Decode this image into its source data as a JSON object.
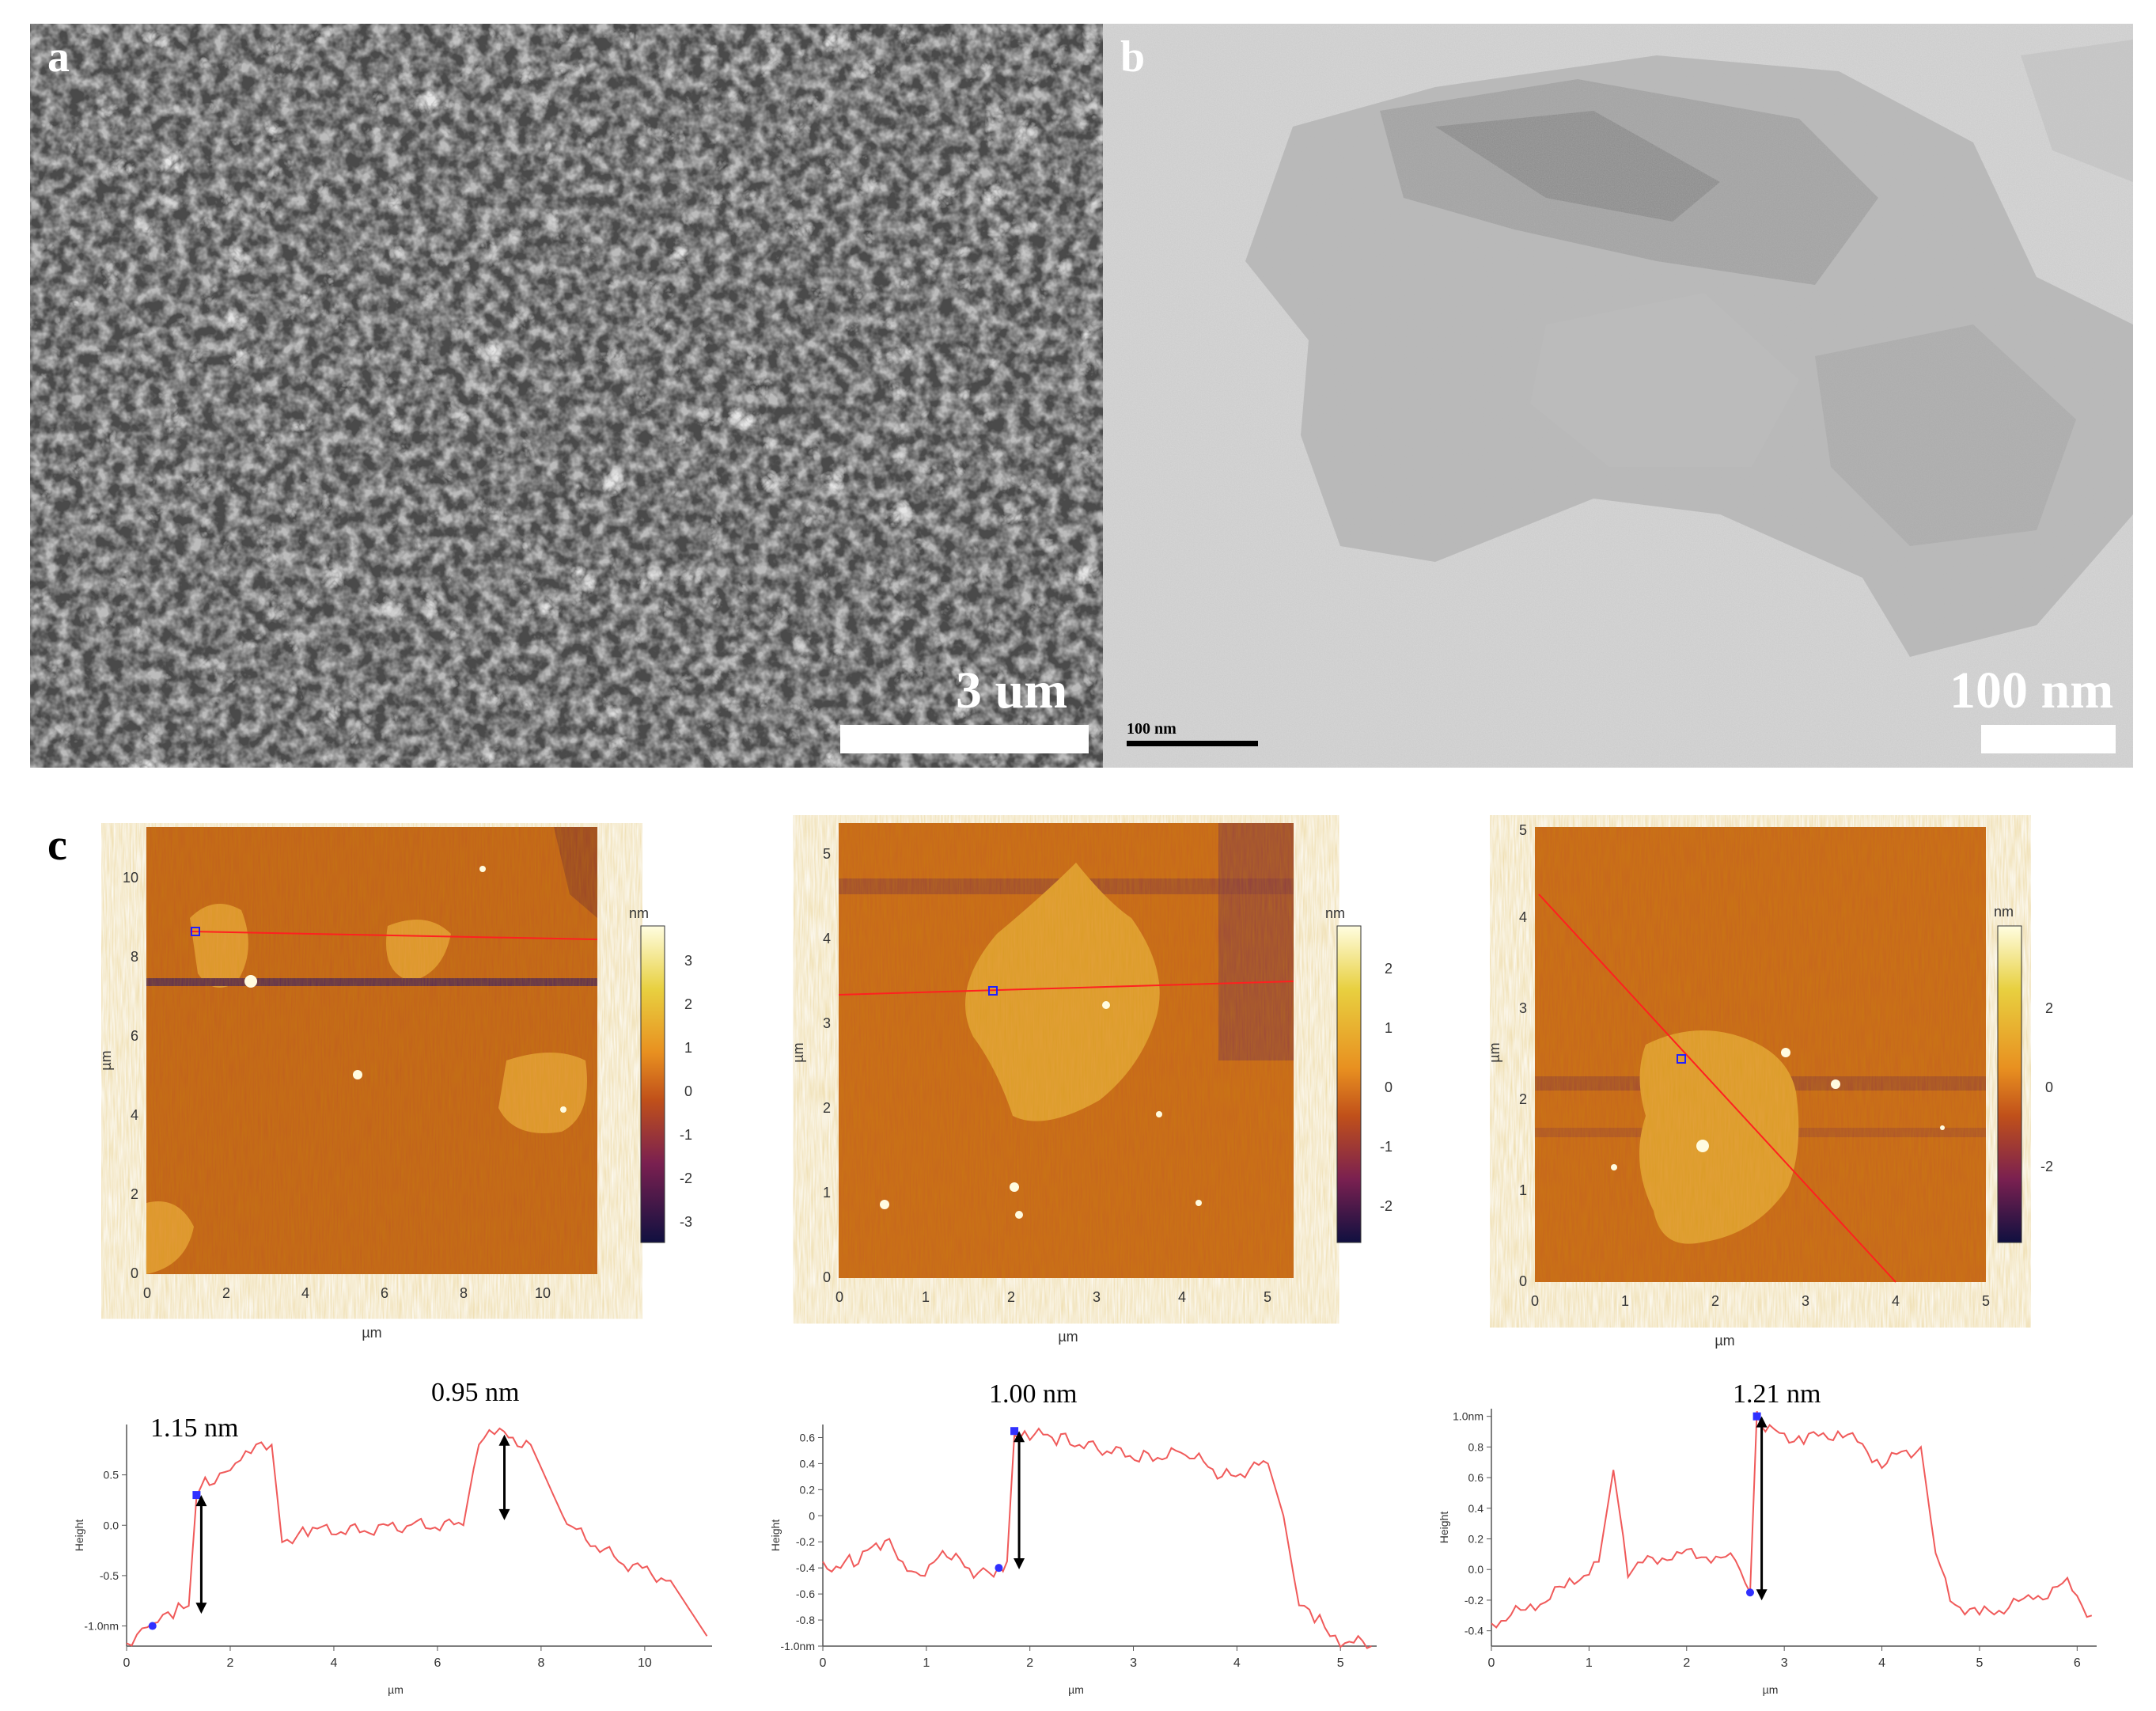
{
  "panels": {
    "a": {
      "letter": "a",
      "scale_label": "3 um"
    },
    "b": {
      "letter": "b",
      "scale_label": "100 nm",
      "micro_label": "100 nm"
    },
    "c": {
      "letter": "c"
    }
  },
  "afm": [
    {
      "xticks": [
        "0",
        "2",
        "4",
        "6",
        "8",
        "10"
      ],
      "yticks": [
        "0",
        "2",
        "4",
        "6",
        "8",
        "10"
      ],
      "axis_unit": "µm",
      "colorbar_unit": "nm",
      "colorbar_ticks": [
        "3",
        "2",
        "1",
        "0",
        "-1",
        "-2",
        "-3"
      ]
    },
    {
      "xticks": [
        "0",
        "1",
        "2",
        "3",
        "4",
        "5"
      ],
      "yticks": [
        "0",
        "1",
        "2",
        "3",
        "4",
        "5"
      ],
      "axis_unit": "µm",
      "colorbar_unit": "nm",
      "colorbar_ticks": [
        "2",
        "1",
        "0",
        "-1",
        "-2"
      ]
    },
    {
      "xticks": [
        "0",
        "1",
        "2",
        "3",
        "4",
        "5"
      ],
      "yticks": [
        "0",
        "1",
        "2",
        "3",
        "4",
        "5"
      ],
      "axis_unit": "µm",
      "colorbar_unit": "nm",
      "colorbar_ticks": [
        "2",
        "0",
        "-2"
      ]
    }
  ],
  "chart_data": [
    {
      "type": "line",
      "xlabel": "µm",
      "ylabel": "Height",
      "xticks": [
        "0",
        "2",
        "4",
        "6",
        "8",
        "10"
      ],
      "yticks": [
        "0.5",
        "0.0",
        "-0.5",
        "-1.0nm"
      ],
      "annotations": [
        "1.15 nm",
        "0.95 nm"
      ],
      "xlim": [
        0,
        11.3
      ],
      "ylim": [
        -1.2,
        1.0
      ],
      "x": [
        0,
        0.5,
        1.0,
        1.2,
        1.35,
        1.6,
        2.0,
        2.5,
        2.8,
        3.0,
        3.5,
        4.5,
        5.5,
        6.5,
        6.8,
        7.2,
        7.8,
        8.5,
        9.5,
        10.5,
        11.2
      ],
      "y": [
        -1.15,
        -1.0,
        -0.85,
        -0.8,
        0.3,
        0.45,
        0.55,
        0.75,
        0.8,
        -0.15,
        -0.05,
        -0.05,
        0.0,
        0.0,
        0.85,
        0.9,
        0.8,
        0.0,
        -0.35,
        -0.55,
        -1.1
      ]
    },
    {
      "type": "line",
      "xlabel": "µm",
      "ylabel": "Height",
      "xticks": [
        "0",
        "1",
        "2",
        "3",
        "4",
        "5"
      ],
      "yticks": [
        "0.6",
        "0.4",
        "0.2",
        "0",
        "-0.2",
        "-0.4",
        "-0.6",
        "-0.8",
        "-1.0nm"
      ],
      "annotations": [
        "1.00 nm"
      ],
      "xlim": [
        0,
        5.35
      ],
      "ylim": [
        -1.0,
        0.7
      ],
      "x": [
        0,
        0.3,
        0.6,
        0.9,
        1.2,
        1.5,
        1.7,
        1.78,
        1.85,
        2.0,
        2.3,
        2.7,
        3.1,
        3.5,
        3.9,
        4.3,
        4.45,
        4.6,
        4.8,
        5.0,
        5.3
      ],
      "y": [
        -0.4,
        -0.35,
        -0.2,
        -0.45,
        -0.3,
        -0.45,
        -0.4,
        -0.35,
        0.65,
        0.62,
        0.6,
        0.5,
        0.45,
        0.48,
        0.3,
        0.4,
        0.0,
        -0.7,
        -0.8,
        -0.95,
        -1.0
      ]
    },
    {
      "type": "line",
      "xlabel": "µm",
      "ylabel": "Height",
      "xticks": [
        "0",
        "1",
        "2",
        "3",
        "4",
        "5",
        "6"
      ],
      "yticks": [
        "1.0nm",
        "0.8",
        "0.6",
        "0.4",
        "0.2",
        "0.0",
        "-0.2",
        "-0.4"
      ],
      "annotations": [
        "1.21 nm"
      ],
      "xlim": [
        0,
        6.2
      ],
      "ylim": [
        -0.5,
        1.05
      ],
      "x": [
        0,
        0.4,
        0.8,
        1.1,
        1.25,
        1.4,
        1.8,
        2.2,
        2.5,
        2.65,
        2.72,
        2.85,
        3.2,
        3.6,
        4.0,
        4.4,
        4.55,
        4.7,
        5.0,
        5.5,
        5.9,
        6.15
      ],
      "y": [
        -0.35,
        -0.25,
        -0.1,
        0.05,
        0.65,
        0.0,
        0.1,
        0.1,
        0.05,
        -0.15,
        1.0,
        0.9,
        0.85,
        0.9,
        0.7,
        0.8,
        0.1,
        -0.2,
        -0.3,
        -0.2,
        -0.1,
        -0.3
      ]
    }
  ]
}
